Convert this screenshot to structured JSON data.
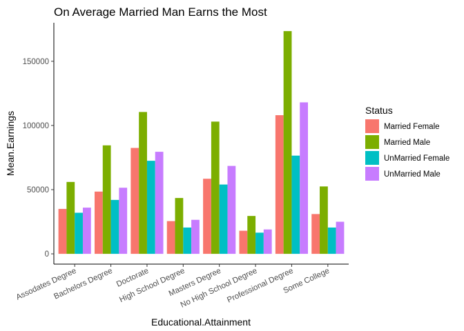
{
  "chart_data": {
    "type": "bar",
    "title": "On Average Married Man Earns the Most",
    "xlabel": "Educational.Attainment",
    "ylabel": "Mean.Earnings",
    "ylim": [
      -8000,
      180000
    ],
    "yticks": [
      0,
      50000,
      100000,
      150000
    ],
    "ytick_labels": [
      "0",
      "50000",
      "100000",
      "150000"
    ],
    "grid": false,
    "legend_position": "right",
    "legend_title": "Status",
    "categories": [
      "Assodates Degree",
      "Bachelors Degree",
      "Doctorate",
      "High School Degree",
      "Masters Degree",
      "No High School Degree",
      "Professional Degree",
      "Some College"
    ],
    "series": [
      {
        "name": "Married Female",
        "color": "#F8766D",
        "values": [
          35000,
          48500,
          82500,
          25500,
          58500,
          18000,
          108000,
          31000
        ]
      },
      {
        "name": "Married Male",
        "color": "#7CAE00",
        "values": [
          56000,
          84500,
          110500,
          43500,
          103000,
          29500,
          173500,
          52500
        ]
      },
      {
        "name": "UnMarried Female",
        "color": "#00BFC4",
        "values": [
          32000,
          42000,
          72500,
          20500,
          54000,
          16500,
          76500,
          20500
        ]
      },
      {
        "name": "UnMarried Male",
        "color": "#C77CFF",
        "values": [
          36000,
          51500,
          79500,
          26500,
          68500,
          19000,
          118000,
          25000
        ]
      }
    ]
  }
}
